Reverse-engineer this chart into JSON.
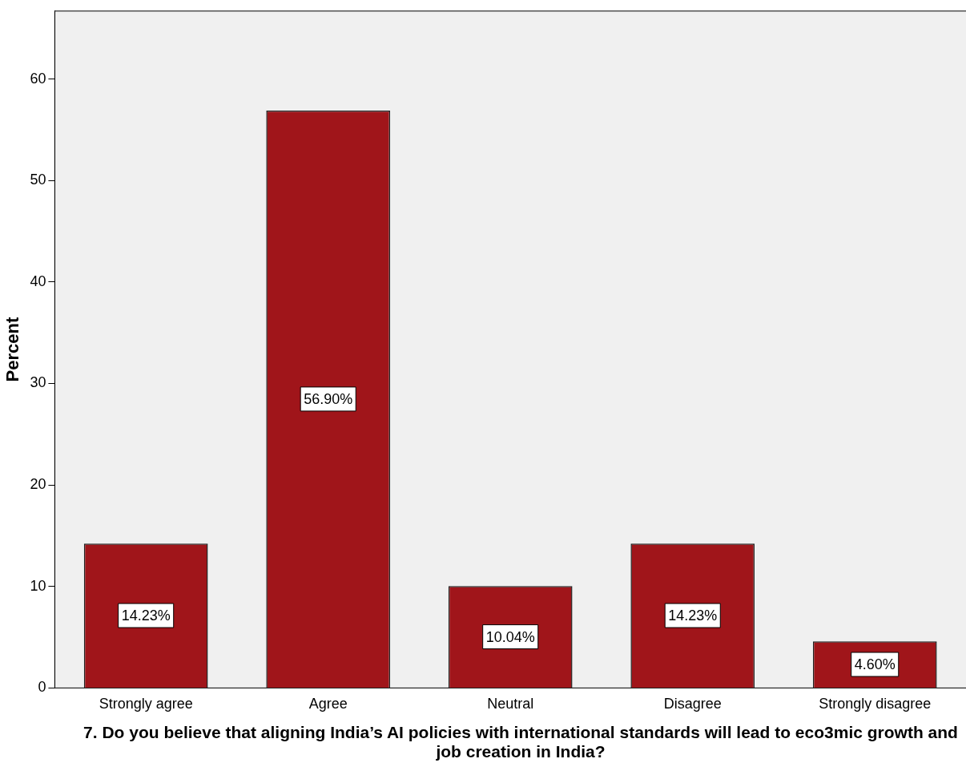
{
  "chart_data": {
    "type": "bar",
    "xlabel": "7. Do you believe that aligning India’s AI policies with international standards will lead to eco3mic growth and job creation in India?",
    "ylabel": "Percent",
    "categories": [
      "Strongly agree",
      "Agree",
      "Neutral",
      "Disagree",
      "Strongly disagree"
    ],
    "values": [
      14.23,
      56.9,
      10.04,
      14.23,
      4.6
    ],
    "value_labels": [
      "14.23%",
      "56.90%",
      "10.04%",
      "14.23%",
      "4.60%"
    ],
    "color": "#a0151a",
    "ylim": [
      0,
      66.7
    ],
    "yticks": [
      0,
      10,
      20,
      30,
      40,
      50,
      60
    ],
    "grid": false,
    "legend": false
  }
}
